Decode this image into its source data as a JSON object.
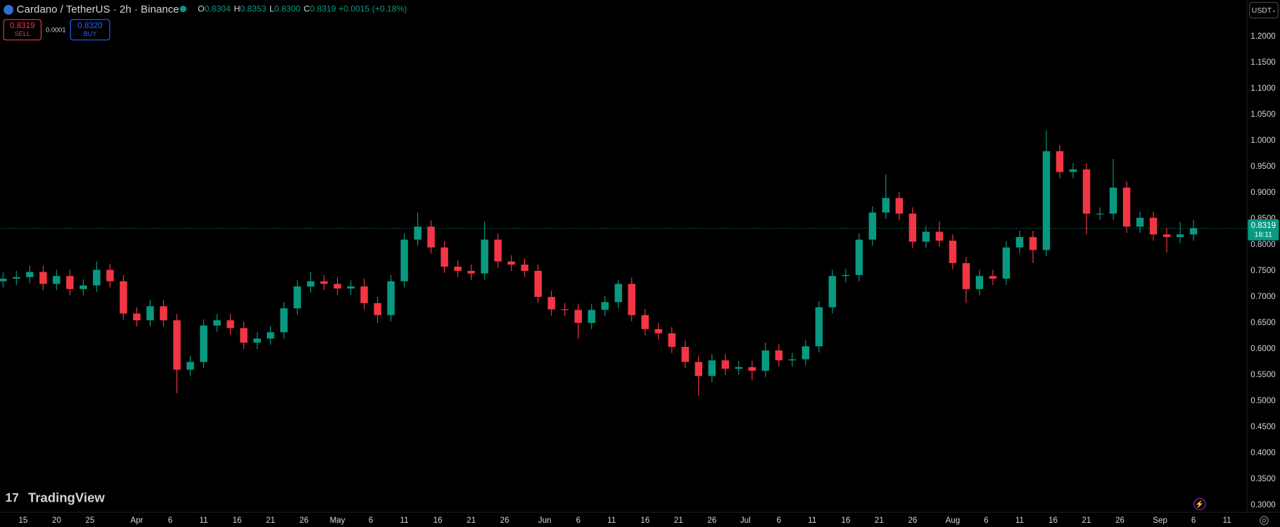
{
  "chart_data": {
    "type": "candlestick",
    "symbol": "Cardano / TetherUS · 2h · Binance",
    "ohlc_legend": [
      {
        "label": "O",
        "value": "0.8304"
      },
      {
        "label": "H",
        "value": "0.8353"
      },
      {
        "label": "L",
        "value": "0.8300"
      },
      {
        "label": "C",
        "value": "0.8319"
      }
    ],
    "change": "+0.0015 (+0.18%)",
    "sell_price": "0.8319",
    "sell_label": "SELL",
    "spread": "0.0001",
    "buy_price": "0.8320",
    "buy_label": "BUY",
    "currency": "USDT",
    "countdown": "18:11",
    "brand": "TradingView",
    "up_color": "#089981",
    "down_color": "#f23645",
    "grid": false,
    "xlim": [
      -3.4,
      183
    ],
    "ylim": [
      0.286,
      1.2705
    ],
    "xticks": [
      {
        "value": 0,
        "label": "15"
      },
      {
        "value": 5,
        "label": "20"
      },
      {
        "value": 10,
        "label": "25"
      },
      {
        "value": 17,
        "label": "Apr"
      },
      {
        "value": 22,
        "label": "6"
      },
      {
        "value": 27,
        "label": "11"
      },
      {
        "value": 32,
        "label": "16"
      },
      {
        "value": 37,
        "label": "21"
      },
      {
        "value": 42,
        "label": "26"
      },
      {
        "value": 47,
        "label": "May"
      },
      {
        "value": 52,
        "label": "6"
      },
      {
        "value": 57,
        "label": "11"
      },
      {
        "value": 62,
        "label": "16"
      },
      {
        "value": 67,
        "label": "21"
      },
      {
        "value": 72,
        "label": "26"
      },
      {
        "value": 78,
        "label": "Jun"
      },
      {
        "value": 83,
        "label": "6"
      },
      {
        "value": 88,
        "label": "11"
      },
      {
        "value": 93,
        "label": "16"
      },
      {
        "value": 98,
        "label": "21"
      },
      {
        "value": 103,
        "label": "26"
      },
      {
        "value": 108,
        "label": "Jul"
      },
      {
        "value": 113,
        "label": "6"
      },
      {
        "value": 118,
        "label": "11"
      },
      {
        "value": 123,
        "label": "16"
      },
      {
        "value": 128,
        "label": "21"
      },
      {
        "value": 133,
        "label": "26"
      },
      {
        "value": 139,
        "label": "Aug"
      },
      {
        "value": 144,
        "label": "6"
      },
      {
        "value": 149,
        "label": "11"
      },
      {
        "value": 154,
        "label": "16"
      },
      {
        "value": 159,
        "label": "21"
      },
      {
        "value": 164,
        "label": "26"
      },
      {
        "value": 170,
        "label": "Sep"
      },
      {
        "value": 175,
        "label": "6"
      },
      {
        "value": 180,
        "label": "11"
      }
    ],
    "yticks": [
      {
        "value": 0.3,
        "label": "0.3000"
      },
      {
        "value": 0.35,
        "label": "0.3500"
      },
      {
        "value": 0.4,
        "label": "0.4000"
      },
      {
        "value": 0.45,
        "label": "0.4500"
      },
      {
        "value": 0.5,
        "label": "0.5000"
      },
      {
        "value": 0.55,
        "label": "0.5500"
      },
      {
        "value": 0.6,
        "label": "0.6000"
      },
      {
        "value": 0.65,
        "label": "0.6500"
      },
      {
        "value": 0.7,
        "label": "0.7000"
      },
      {
        "value": 0.75,
        "label": "0.7500"
      },
      {
        "value": 0.8,
        "label": "0.8000"
      },
      {
        "value": 0.85,
        "label": "0.8500"
      },
      {
        "value": 0.9,
        "label": "0.9000"
      },
      {
        "value": 0.95,
        "label": "0.9500"
      },
      {
        "value": 1.0,
        "label": "1.0000"
      },
      {
        "value": 1.05,
        "label": "1.0500"
      },
      {
        "value": 1.1,
        "label": "1.1000"
      },
      {
        "value": 1.15,
        "label": "1.1500"
      },
      {
        "value": 1.2,
        "label": "1.2000"
      }
    ],
    "candles": {
      "x": [
        -3,
        -1,
        1,
        3,
        5,
        7,
        9,
        11,
        13,
        15,
        17,
        19,
        21,
        23,
        25,
        27,
        29,
        31,
        33,
        35,
        37,
        39,
        41,
        43,
        45,
        47,
        49,
        51,
        53,
        55,
        57,
        59,
        61,
        63,
        65,
        67,
        69,
        71,
        73,
        75,
        77,
        79,
        81,
        83,
        85,
        87,
        89,
        91,
        93,
        95,
        97,
        99,
        101,
        103,
        105,
        107,
        109,
        111,
        113,
        115,
        117,
        119,
        121,
        123,
        125,
        127,
        129,
        131,
        133,
        135,
        137,
        139,
        141,
        143,
        145,
        147,
        149,
        151,
        153,
        155,
        157,
        159,
        161,
        163,
        165,
        167,
        169,
        171,
        173,
        175
      ],
      "open": [
        0.73,
        0.735,
        0.738,
        0.748,
        0.725,
        0.74,
        0.715,
        0.722,
        0.752,
        0.73,
        0.668,
        0.655,
        0.682,
        0.655,
        0.56,
        0.575,
        0.645,
        0.655,
        0.64,
        0.612,
        0.62,
        0.632,
        0.678,
        0.72,
        0.73,
        0.725,
        0.716,
        0.72,
        0.688,
        0.665,
        0.73,
        0.81,
        0.835,
        0.795,
        0.758,
        0.75,
        0.745,
        0.81,
        0.768,
        0.762,
        0.75,
        0.7,
        0.676,
        0.675,
        0.65,
        0.675,
        0.69,
        0.725,
        0.665,
        0.638,
        0.63,
        0.604,
        0.575,
        0.548,
        0.578,
        0.562,
        0.565,
        0.558,
        0.597,
        0.578,
        0.58,
        0.605,
        0.68,
        0.74,
        0.742,
        0.81,
        0.862,
        0.89,
        0.86,
        0.806,
        0.825,
        0.808,
        0.765,
        0.715,
        0.74,
        0.735,
        0.795,
        0.815,
        0.79,
        0.98,
        0.94,
        0.945,
        0.86,
        0.86,
        0.91,
        0.835,
        0.852,
        0.82,
        0.815,
        0.82
      ],
      "high": [
        0.747,
        0.75,
        0.76,
        0.76,
        0.752,
        0.752,
        0.734,
        0.768,
        0.764,
        0.742,
        0.68,
        0.694,
        0.694,
        0.667,
        0.587,
        0.657,
        0.667,
        0.667,
        0.652,
        0.632,
        0.644,
        0.69,
        0.732,
        0.748,
        0.742,
        0.737,
        0.732,
        0.735,
        0.7,
        0.742,
        0.822,
        0.862,
        0.847,
        0.807,
        0.77,
        0.762,
        0.845,
        0.822,
        0.78,
        0.774,
        0.762,
        0.712,
        0.688,
        0.687,
        0.687,
        0.702,
        0.732,
        0.737,
        0.677,
        0.65,
        0.642,
        0.616,
        0.587,
        0.59,
        0.59,
        0.577,
        0.577,
        0.612,
        0.609,
        0.592,
        0.617,
        0.692,
        0.752,
        0.754,
        0.822,
        0.874,
        0.935,
        0.902,
        0.872,
        0.837,
        0.845,
        0.82,
        0.777,
        0.752,
        0.752,
        0.807,
        0.827,
        0.827,
        1.02,
        0.992,
        0.957,
        0.957,
        0.872,
        0.965,
        0.922,
        0.864,
        0.864,
        0.832,
        0.844,
        0.848
      ],
      "low": [
        0.718,
        0.723,
        0.726,
        0.713,
        0.713,
        0.703,
        0.703,
        0.71,
        0.718,
        0.656,
        0.643,
        0.643,
        0.643,
        0.515,
        0.548,
        0.563,
        0.633,
        0.628,
        0.6,
        0.6,
        0.608,
        0.62,
        0.666,
        0.708,
        0.713,
        0.704,
        0.704,
        0.676,
        0.65,
        0.653,
        0.718,
        0.798,
        0.783,
        0.746,
        0.738,
        0.733,
        0.733,
        0.756,
        0.75,
        0.738,
        0.688,
        0.664,
        0.663,
        0.62,
        0.638,
        0.663,
        0.678,
        0.653,
        0.626,
        0.618,
        0.592,
        0.563,
        0.51,
        0.536,
        0.55,
        0.55,
        0.54,
        0.546,
        0.566,
        0.566,
        0.568,
        0.593,
        0.668,
        0.728,
        0.73,
        0.798,
        0.85,
        0.848,
        0.794,
        0.794,
        0.796,
        0.753,
        0.688,
        0.703,
        0.723,
        0.723,
        0.783,
        0.765,
        0.778,
        0.928,
        0.928,
        0.82,
        0.848,
        0.848,
        0.823,
        0.823,
        0.808,
        0.785,
        0.803,
        0.808
      ],
      "close": [
        0.735,
        0.738,
        0.748,
        0.725,
        0.74,
        0.715,
        0.722,
        0.752,
        0.73,
        0.668,
        0.655,
        0.682,
        0.655,
        0.56,
        0.575,
        0.645,
        0.655,
        0.64,
        0.612,
        0.62,
        0.632,
        0.678,
        0.72,
        0.73,
        0.725,
        0.716,
        0.72,
        0.688,
        0.665,
        0.73,
        0.81,
        0.835,
        0.795,
        0.758,
        0.75,
        0.745,
        0.81,
        0.768,
        0.762,
        0.75,
        0.7,
        0.676,
        0.675,
        0.65,
        0.675,
        0.69,
        0.725,
        0.665,
        0.638,
        0.63,
        0.604,
        0.575,
        0.548,
        0.578,
        0.562,
        0.565,
        0.558,
        0.597,
        0.578,
        0.58,
        0.605,
        0.68,
        0.74,
        0.742,
        0.81,
        0.862,
        0.89,
        0.86,
        0.806,
        0.825,
        0.808,
        0.765,
        0.715,
        0.74,
        0.735,
        0.795,
        0.815,
        0.79,
        0.98,
        0.94,
        0.945,
        0.86,
        0.86,
        0.91,
        0.835,
        0.852,
        0.82,
        0.815,
        0.82,
        0.8319
      ]
    }
  }
}
